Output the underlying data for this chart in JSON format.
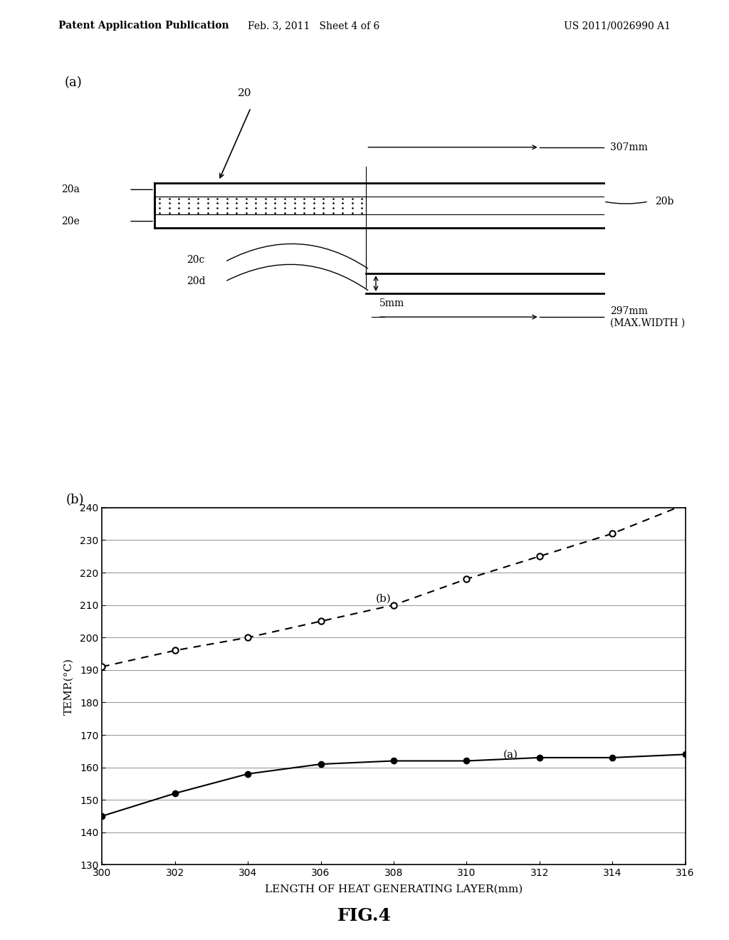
{
  "header_left": "Patent Application Publication",
  "header_mid": "Feb. 3, 2011   Sheet 4 of 6",
  "header_right": "US 2011/0026990 A1",
  "fig_label": "FIG.4",
  "diagram_a_label": "(a)",
  "diagram_b_label": "(b)",
  "label_20": "20",
  "label_20a": "20a",
  "label_20b": "20b",
  "label_20c": "20c",
  "label_20d": "20d",
  "label_20e": "20e",
  "label_307mm": "307mm",
  "label_297mm": "297mm\n(MAX.WIDTH )",
  "label_5mm": "5mm",
  "series_a_x": [
    300,
    302,
    304,
    306,
    308,
    310,
    312,
    314,
    316
  ],
  "series_a_y": [
    145,
    152,
    158,
    161,
    162,
    162,
    163,
    163,
    164
  ],
  "series_b_x": [
    300,
    302,
    304,
    306,
    308,
    310,
    312,
    314,
    316
  ],
  "series_b_y": [
    191,
    196,
    200,
    205,
    210,
    218,
    225,
    232,
    241
  ],
  "xlabel": "LENGTH OF HEAT GENERATING LAYER(mm)",
  "ylabel": "TEMP.(°C)",
  "xmin": 300,
  "xmax": 316,
  "ymin": 130,
  "ymax": 240,
  "xticks": [
    300,
    302,
    304,
    306,
    308,
    310,
    312,
    314,
    316
  ],
  "yticks": [
    130,
    140,
    150,
    160,
    170,
    180,
    190,
    200,
    210,
    220,
    230,
    240
  ],
  "series_a_label": "(a)",
  "series_b_label": "(b)",
  "bg_color": "#ffffff",
  "line_color": "#000000"
}
